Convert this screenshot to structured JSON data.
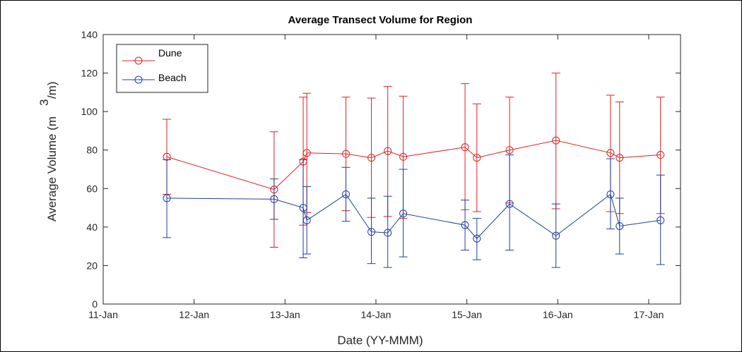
{
  "chart_data": {
    "type": "line",
    "title": "Average Transect Volume for Region",
    "xlabel": "Date (YY-MMM)",
    "ylabel_main": "Average Volume (m",
    "ylabel_sup": "3",
    "ylabel_tail": "/m)",
    "x_tick_labels": [
      "11-Jan",
      "12-Jan",
      "13-Jan",
      "14-Jan",
      "15-Jan",
      "16-Jan",
      "17-Jan"
    ],
    "y_ticks": [
      0,
      20,
      40,
      60,
      80,
      100,
      120,
      140
    ],
    "ylim": [
      0,
      140
    ],
    "grid": false,
    "legend_position": "top-left",
    "series": [
      {
        "name": "Dune",
        "color": "#e02020",
        "x": [
          11.7,
          12.88,
          13.2,
          13.24,
          13.67,
          13.95,
          14.13,
          14.3,
          14.98,
          15.11,
          15.47,
          15.98,
          16.58,
          16.68,
          17.13
        ],
        "y": [
          76.5,
          59.5,
          74,
          78.5,
          78,
          76,
          79.5,
          76.5,
          81.5,
          76,
          80,
          85,
          78.5,
          76,
          77.5
        ],
        "err_low": [
          57,
          29.5,
          41,
          47.5,
          48.5,
          45,
          45.5,
          44.5,
          49,
          48,
          52.5,
          49.5,
          48,
          47,
          47
        ],
        "err_high": [
          96,
          89.5,
          107.5,
          109.5,
          107.5,
          107,
          113,
          108,
          114.5,
          104,
          107.5,
          120,
          108.5,
          105,
          107.5
        ]
      },
      {
        "name": "Beach",
        "color": "#1f3f9f",
        "x": [
          11.7,
          12.88,
          13.2,
          13.24,
          13.67,
          13.95,
          14.13,
          14.3,
          14.98,
          15.11,
          15.47,
          15.98,
          16.58,
          16.68,
          17.13
        ],
        "y": [
          55,
          54.5,
          50,
          43.5,
          57,
          37.5,
          37,
          47,
          41,
          34,
          52,
          35.5,
          57,
          40.5,
          43.5
        ],
        "err_low": [
          34.5,
          44,
          24,
          26,
          43,
          21,
          19,
          24.5,
          28,
          23,
          28,
          19,
          39,
          26,
          20.5
        ],
        "err_high": [
          75,
          65,
          75,
          61,
          71,
          55,
          56,
          70,
          54,
          44.5,
          77.5,
          52,
          75.5,
          55,
          67
        ]
      }
    ]
  }
}
